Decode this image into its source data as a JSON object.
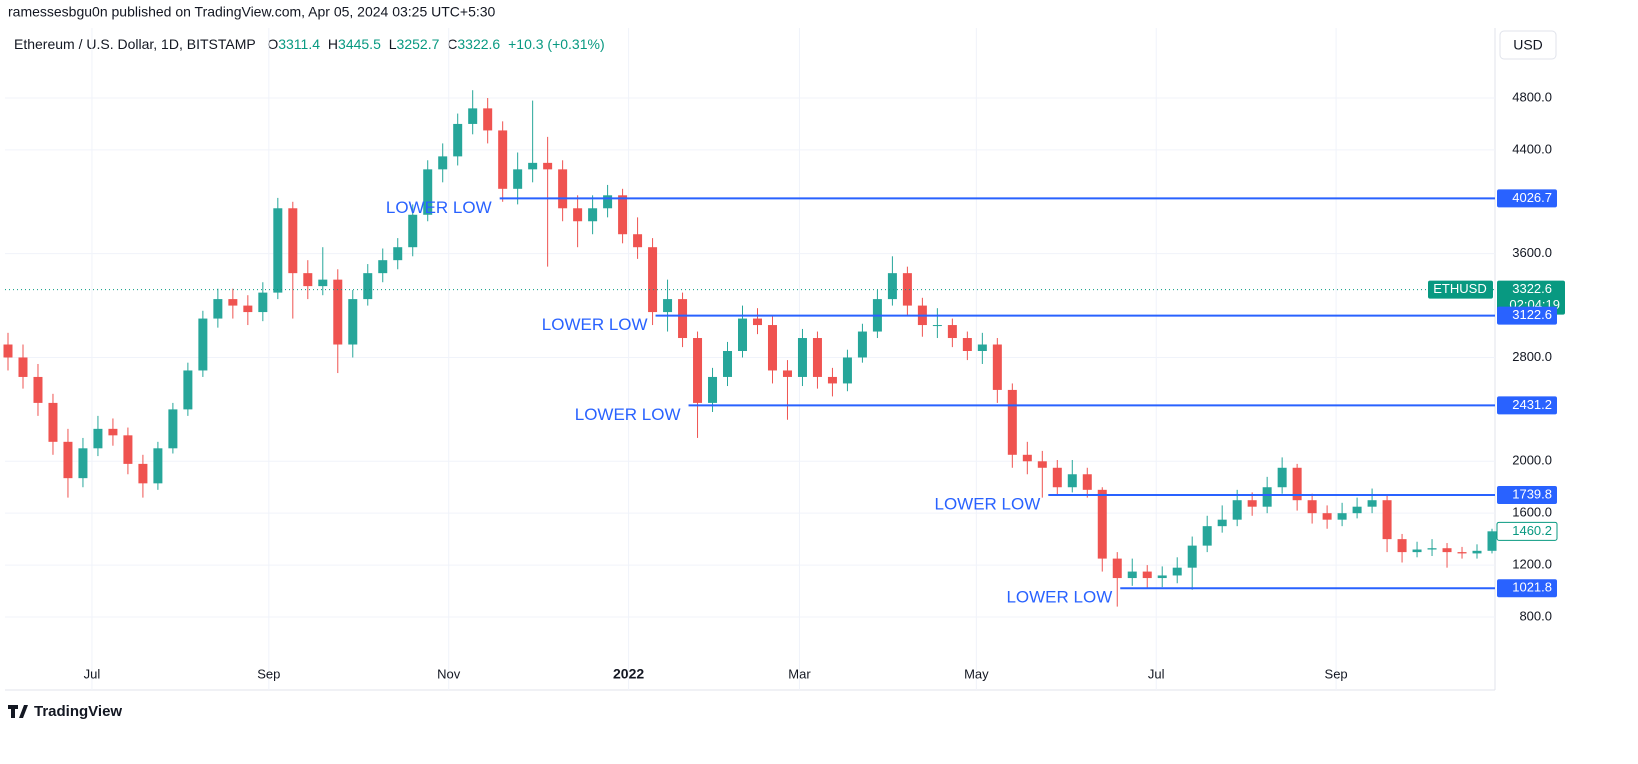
{
  "header": {
    "publisher": "ramessesbgu0n published on TradingView.com, Apr 05, 2024 03:25 UTC+5:30"
  },
  "footer": {
    "brand": "TradingView"
  },
  "chart_data": {
    "type": "candlestick",
    "title": "Ethereum / U.S. Dollar, 1D, BITSTAMP",
    "ohlc": [
      {
        "key": "O",
        "value": 3311.4
      },
      {
        "key": "H",
        "value": 3445.5
      },
      {
        "key": "L",
        "value": 3252.7
      },
      {
        "key": "C",
        "value": 3322.6
      }
    ],
    "change": "+10.3 (+0.31%)",
    "currency": "USD",
    "up_color": "#26a69a",
    "down_color": "#ef5350",
    "level_color": "#2962ff",
    "x": [
      0,
      5,
      10,
      15,
      20,
      25,
      30,
      35,
      40,
      45,
      50,
      55,
      60,
      65,
      70,
      75,
      80,
      85,
      90,
      95,
      100,
      105,
      110,
      115,
      120,
      125,
      130,
      135,
      140,
      145,
      150,
      155,
      160,
      165,
      170,
      175,
      180,
      185,
      190,
      195,
      200,
      205,
      210,
      215,
      220,
      225,
      230,
      235,
      240,
      245,
      250,
      255,
      260,
      265,
      270,
      275,
      280,
      285,
      290,
      295,
      300,
      305,
      310,
      315,
      320,
      325,
      330,
      335,
      340,
      345,
      350,
      355,
      360,
      365,
      370,
      375,
      380,
      385,
      390,
      395,
      400,
      405,
      410,
      415,
      420,
      425,
      430,
      435,
      440,
      445,
      450,
      455,
      460,
      465,
      470,
      475,
      480,
      485,
      490,
      495
    ],
    "open": [
      2900,
      2800,
      2650,
      2450,
      2150,
      1870,
      2100,
      2250,
      2200,
      1980,
      1830,
      2100,
      2400,
      2700,
      3100,
      3250,
      3200,
      3150,
      3300,
      3950,
      3450,
      3350,
      3400,
      2900,
      3250,
      3450,
      3550,
      3650,
      3900,
      4250,
      4350,
      4600,
      4720,
      4550,
      4100,
      4250,
      4300,
      4250,
      3950,
      3850,
      3950,
      4050,
      3750,
      3650,
      3150,
      3250,
      2950,
      2450,
      2650,
      2850,
      3100,
      3050,
      2700,
      2650,
      2950,
      2650,
      2600,
      2800,
      3000,
      3250,
      3450,
      3200,
      3050,
      3050,
      2950,
      2850,
      2900,
      2550,
      2050,
      2000,
      1950,
      1800,
      1900,
      1780,
      1250,
      1100,
      1150,
      1100,
      1120,
      1180,
      1350,
      1500,
      1550,
      1700,
      1650,
      1800,
      1950,
      1700,
      1600,
      1550,
      1600,
      1650,
      1700,
      1400,
      1300,
      1320,
      1330,
      1300,
      1290,
      1310
    ],
    "high": [
      2990,
      2900,
      2750,
      2520,
      2250,
      2180,
      2350,
      2330,
      2260,
      2050,
      2150,
      2450,
      2760,
      3160,
      3330,
      3330,
      3280,
      3380,
      4030,
      4000,
      3550,
      3650,
      3480,
      3320,
      3520,
      3640,
      3720,
      3980,
      4320,
      4450,
      4680,
      4860,
      4800,
      4620,
      4380,
      4780,
      4500,
      4320,
      4050,
      4050,
      4130,
      4100,
      3880,
      3720,
      3400,
      3300,
      3000,
      2720,
      2920,
      3200,
      3180,
      3120,
      2780,
      3020,
      3000,
      2720,
      2860,
      3060,
      3320,
      3580,
      3500,
      3260,
      3180,
      3100,
      3000,
      2990,
      2950,
      2600,
      2150,
      2080,
      2010,
      2010,
      1950,
      1800,
      1300,
      1250,
      1200,
      1190,
      1260,
      1420,
      1580,
      1660,
      1780,
      1760,
      1880,
      2030,
      1980,
      1750,
      1660,
      1680,
      1720,
      1790,
      1740,
      1440,
      1380,
      1400,
      1370,
      1340,
      1360,
      1480
    ],
    "low": [
      2700,
      2560,
      2350,
      2050,
      1720,
      1800,
      2040,
      2120,
      1900,
      1720,
      1780,
      2060,
      2350,
      2650,
      3030,
      3100,
      3050,
      3080,
      3250,
      3100,
      3250,
      3280,
      2680,
      2800,
      3200,
      3380,
      3480,
      3580,
      3850,
      4150,
      4280,
      4520,
      4450,
      4000,
      3980,
      4150,
      3500,
      3850,
      3650,
      3750,
      3880,
      3680,
      3560,
      3050,
      3000,
      2880,
      2180,
      2380,
      2580,
      2800,
      2980,
      2600,
      2320,
      2580,
      2560,
      2500,
      2540,
      2760,
      2950,
      3200,
      3120,
      2960,
      2950,
      2880,
      2780,
      2750,
      2450,
      1950,
      1900,
      1720,
      1740,
      1760,
      1720,
      1150,
      880,
      1040,
      1020,
      1030,
      1060,
      1010,
      1300,
      1450,
      1500,
      1580,
      1600,
      1750,
      1620,
      1520,
      1480,
      1500,
      1560,
      1600,
      1300,
      1220,
      1260,
      1270,
      1180,
      1250,
      1250,
      1290
    ],
    "close": [
      2800,
      2650,
      2450,
      2150,
      1870,
      2100,
      2250,
      2200,
      1980,
      1830,
      2100,
      2400,
      2700,
      3100,
      3250,
      3200,
      3150,
      3300,
      3950,
      3450,
      3350,
      3400,
      2900,
      3250,
      3450,
      3550,
      3650,
      3900,
      4250,
      4350,
      4600,
      4720,
      4550,
      4100,
      4250,
      4300,
      4250,
      3950,
      3850,
      3950,
      4050,
      3750,
      3650,
      3150,
      3250,
      2950,
      2450,
      2650,
      2850,
      3100,
      3050,
      2700,
      2650,
      2950,
      2650,
      2600,
      2800,
      3000,
      3250,
      3450,
      3200,
      3050,
      3050,
      2950,
      2850,
      2900,
      2550,
      2050,
      2000,
      1950,
      1800,
      1900,
      1780,
      1250,
      1100,
      1150,
      1100,
      1120,
      1180,
      1350,
      1500,
      1550,
      1700,
      1650,
      1800,
      1950,
      1700,
      1600,
      1550,
      1600,
      1650,
      1700,
      1400,
      1300,
      1320,
      1330,
      1300,
      1290,
      1310,
      1460.2
    ],
    "xlim": [
      -1,
      496
    ],
    "xticks": [
      {
        "value": 28,
        "label": "Jul"
      },
      {
        "value": 87,
        "label": "Sep"
      },
      {
        "value": 147,
        "label": "Nov"
      },
      {
        "value": 207,
        "label": "2022"
      },
      {
        "value": 264,
        "label": "Mar"
      },
      {
        "value": 323,
        "label": "May"
      },
      {
        "value": 383,
        "label": "Jul"
      },
      {
        "value": 443,
        "label": "Sep"
      }
    ],
    "bold_xticks": [
      3
    ],
    "ylim": [
      507,
      5324
    ],
    "yticks": [
      {
        "value": 800,
        "label": "800.0"
      },
      {
        "value": 1200,
        "label": "1200.0"
      },
      {
        "value": 1600,
        "label": "1600.0"
      },
      {
        "value": 2000,
        "label": "2000.0"
      },
      {
        "value": 2800,
        "label": "2800.0"
      },
      {
        "value": 3600,
        "label": "3600.0"
      },
      {
        "value": 4400,
        "label": "4400.0"
      },
      {
        "value": 4800,
        "label": "4800.0"
      }
    ],
    "grid": true,
    "levels": [
      {
        "value": 4026.7,
        "start": 164,
        "label": "LOWER LOW"
      },
      {
        "value": 3122.6,
        "start": 216,
        "label": "LOWER LOW"
      },
      {
        "value": 2431.2,
        "start": 227,
        "label": "LOWER LOW"
      },
      {
        "value": 1739.8,
        "start": 347,
        "label": "LOWER LOW"
      },
      {
        "value": 1021.8,
        "start": 371,
        "label": "LOWER LOW"
      }
    ],
    "current": {
      "symbol": "ETHUSD",
      "price": 3322.6,
      "countdown": "02:04:19",
      "color": "#089981"
    }
  }
}
